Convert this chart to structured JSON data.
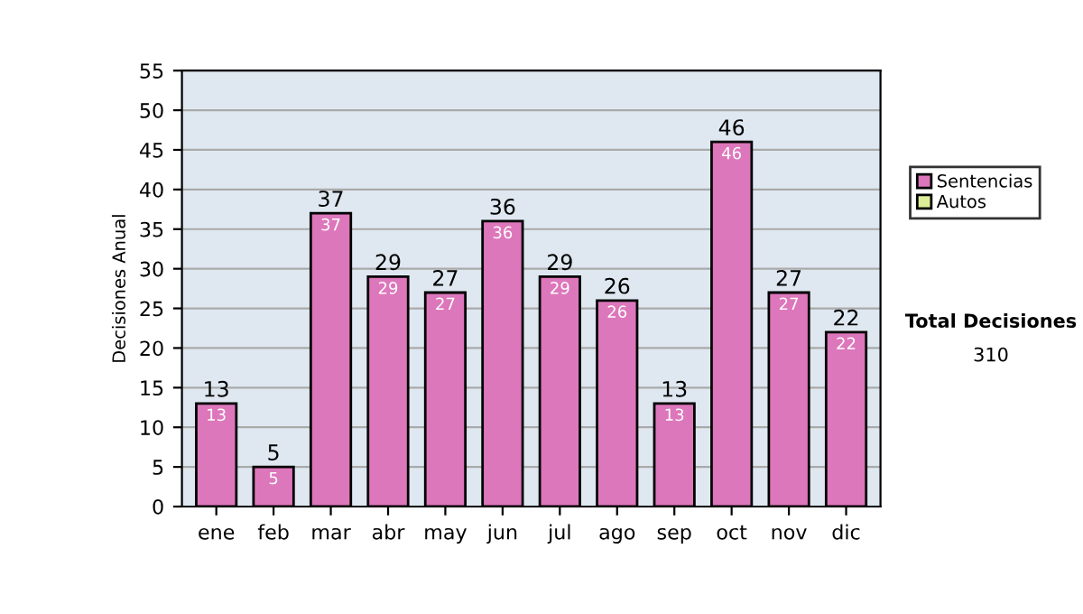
{
  "chart_data": {
    "type": "bar",
    "ylabel": "Decisiones Anual",
    "stacked": true,
    "categories": [
      "ene",
      "feb",
      "mar",
      "abr",
      "may",
      "jun",
      "jul",
      "ago",
      "sep",
      "oct",
      "nov",
      "dic"
    ],
    "series": [
      {
        "name": "Sentencias",
        "color": "#dd77bb",
        "values": [
          13,
          5,
          37,
          29,
          27,
          36,
          29,
          26,
          13,
          46,
          27,
          22
        ],
        "value_labels": [
          "13",
          "5",
          "37",
          "29",
          "27",
          "36",
          "29",
          "26",
          "13",
          "46",
          "27",
          "22"
        ]
      },
      {
        "name": "Autos",
        "color": "#ddee99",
        "values": [
          null,
          null,
          null,
          null,
          null,
          null,
          null,
          null,
          null,
          null,
          null,
          null
        ]
      }
    ],
    "totals": [
      "13",
      "5",
      "37",
      "29",
      "27",
      "36",
      "29",
      "26",
      "13",
      "46",
      "27",
      "22"
    ],
    "ylim": [
      0,
      55
    ],
    "yticks": [
      0,
      5,
      10,
      15,
      20,
      25,
      30,
      35,
      40,
      45,
      50,
      55
    ],
    "grid": "y",
    "legend": "right",
    "annotations": [
      "Total Decisiones",
      "310"
    ]
  }
}
